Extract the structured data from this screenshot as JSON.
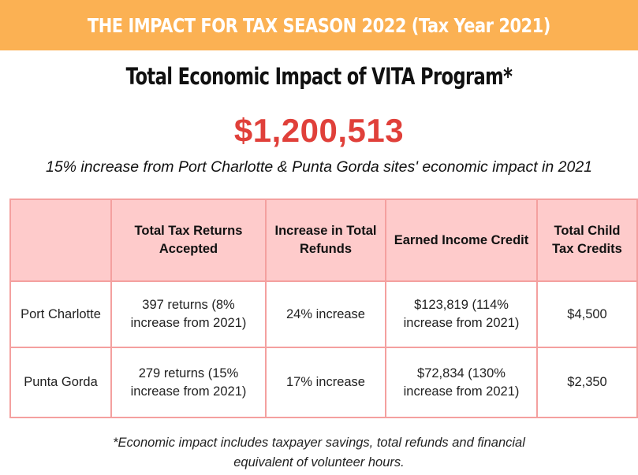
{
  "banner": {
    "title": "THE IMPACT FOR TAX SEASON 2022 (Tax Year 2021)"
  },
  "headline": {
    "title": "Total Economic Impact of VITA Program*",
    "amount": "$1,200,513",
    "subtitle": "15% increase from Port Charlotte & Punta Gorda sites' economic impact in 2021"
  },
  "table": {
    "headers": [
      "",
      "Total Tax Returns Accepted",
      "Increase in Total Refunds",
      "Earned Income Credit",
      "Total Child Tax Credits"
    ],
    "rows": [
      {
        "site": "Port Charlotte",
        "returns": "397 returns (8% increase from 2021)",
        "refunds": "24% increase",
        "eic": "$123,819 (114% increase from 2021)",
        "child_tax": "$4,500"
      },
      {
        "site": "Punta Gorda",
        "returns": "279 returns (15% increase from 2021)",
        "refunds": "17% increase",
        "eic": "$72,834 (130% increase from 2021)",
        "child_tax": "$2,350"
      }
    ]
  },
  "footnote": {
    "line1": "*Economic impact includes taxpayer savings, total refunds and financial",
    "line2": "equivalent of volunteer hours."
  },
  "colors": {
    "banner": "#fbb153",
    "amount": "#e0403a",
    "header_fill": "#fecbcb",
    "border": "#f4a09f"
  }
}
